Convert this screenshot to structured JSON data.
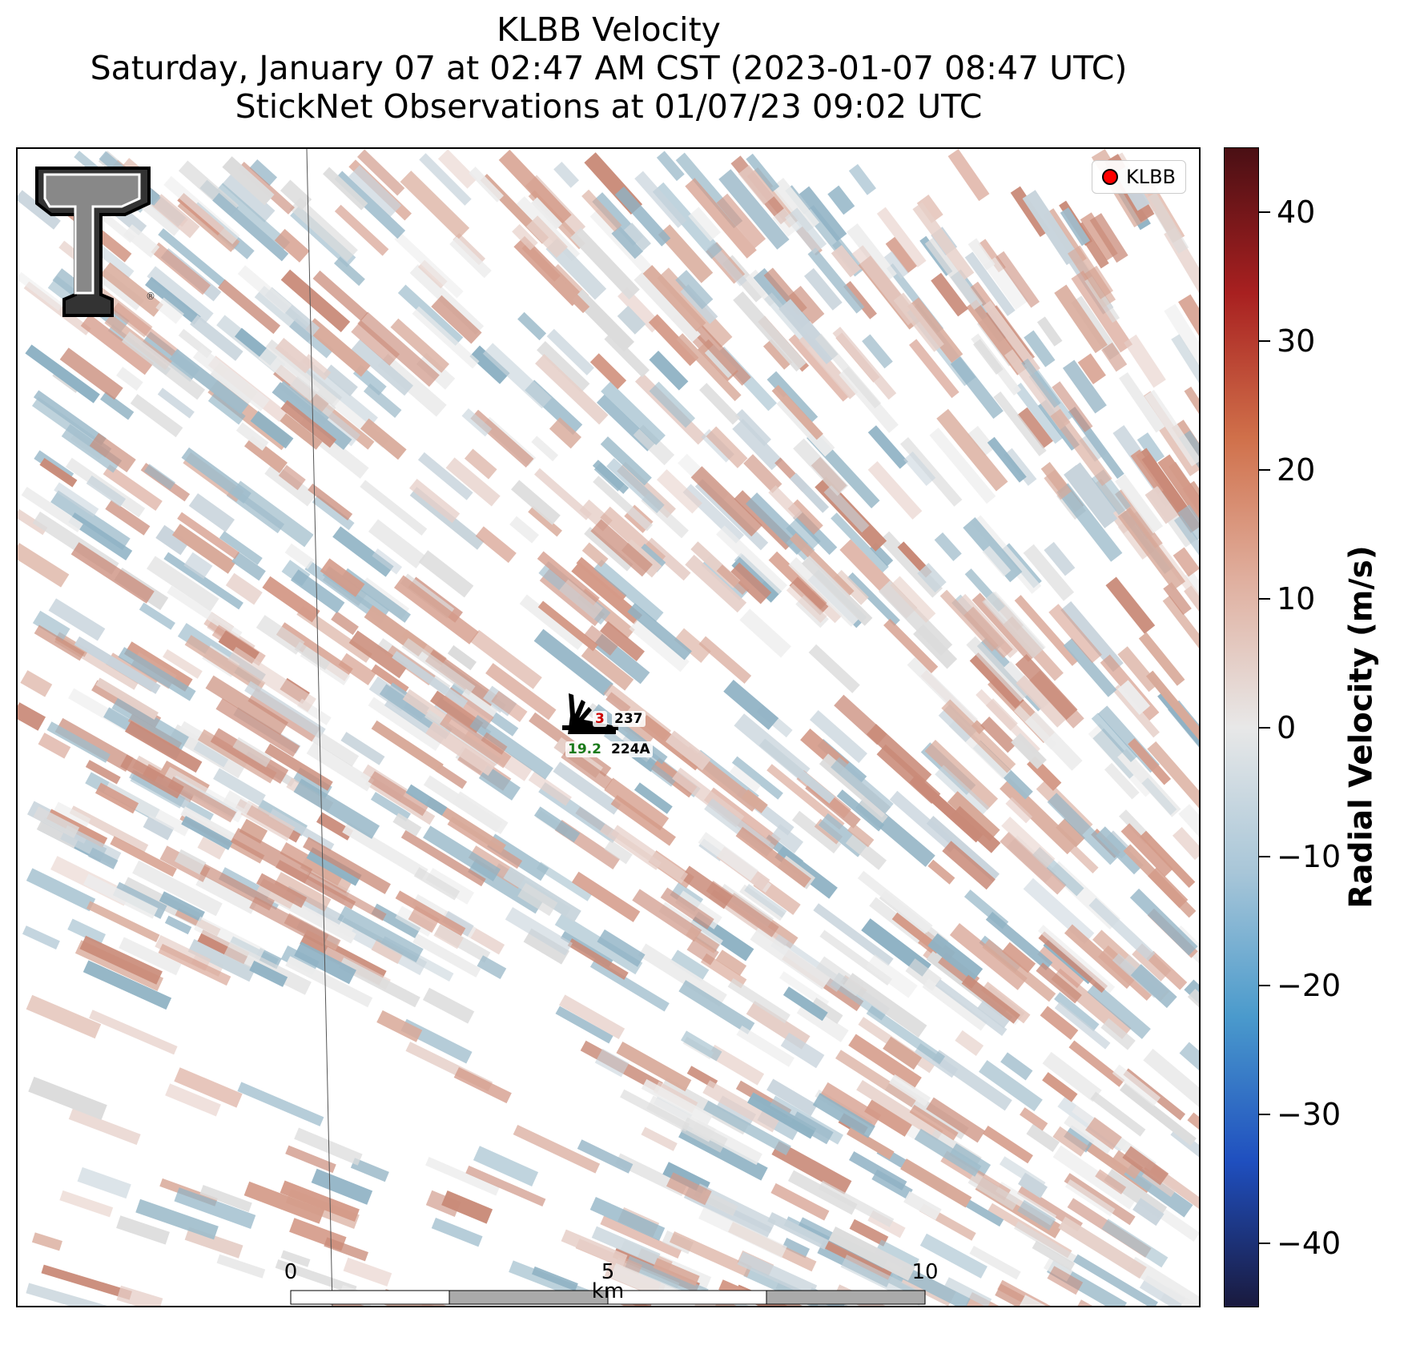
{
  "title": {
    "line1": "KLBB Velocity",
    "line2": "Saturday, January 07 at 02:47 AM CST (2023-01-07 08:47 UTC)",
    "line3": "StickNet Observations at 01/07/23 09:02 UTC"
  },
  "legend": {
    "label": "KLBB",
    "marker_color": "#ff0000"
  },
  "logo": {
    "name": "Texas Tech Double T",
    "trademark": "®"
  },
  "stations": [
    {
      "id": "237",
      "value": "3",
      "value_color": "#cc0000"
    },
    {
      "id": "224A",
      "value": "19.2",
      "value_color": "#1a7a1a"
    }
  ],
  "scale_bar": {
    "unit": "km",
    "ticks": [
      "0",
      "5",
      "10"
    ]
  },
  "colorbar": {
    "label": "Radial Velocity (m/s)",
    "min": -45,
    "max": 45,
    "ticks": [
      "40",
      "30",
      "20",
      "10",
      "0",
      "−10",
      "−20",
      "−30",
      "−40"
    ],
    "colors": [
      "#1a1a3e",
      "#1f4fbf",
      "#4a9acc",
      "#a8c6d8",
      "#e8e8e8",
      "#e0b0a0",
      "#d0704a",
      "#a82020",
      "#4a0f14"
    ]
  }
}
